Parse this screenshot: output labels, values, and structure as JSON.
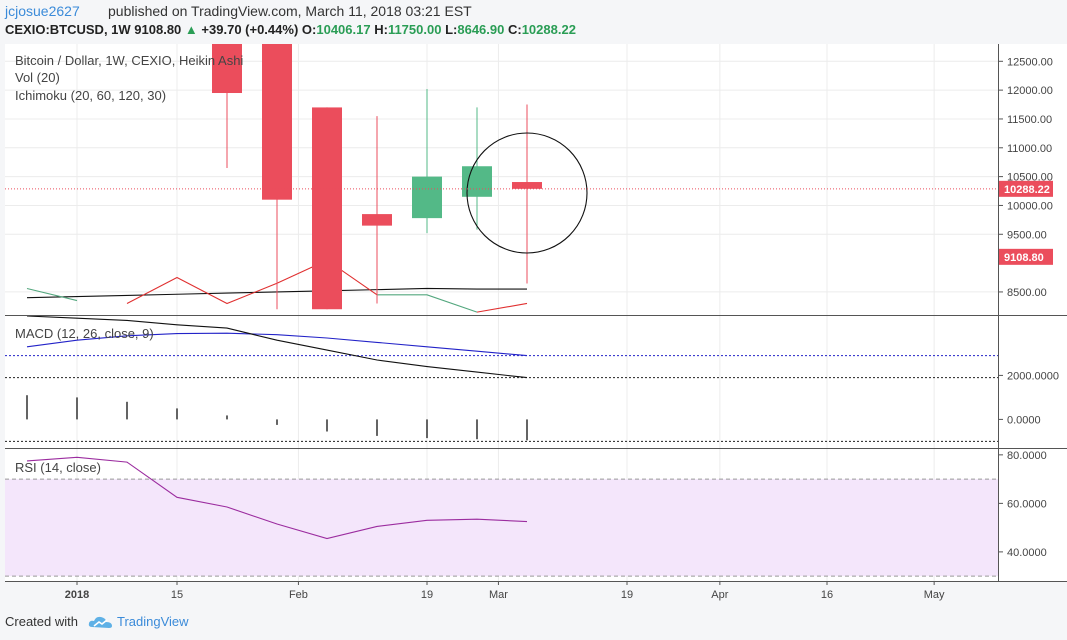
{
  "header": {
    "username": "jcjosue2627",
    "published": "published on TradingView.com, March 11, 2018 03:21 EST",
    "symbol": "CEXIO:BTCUSD, 1W",
    "price": "9108.80",
    "change": "+39.70 (+0.44%)",
    "o_label": "O:",
    "o_value": "10406.17",
    "h_label": "H:",
    "h_value": "11750.00",
    "l_label": "L:",
    "l_value": "8646.90",
    "c_label": "C:",
    "c_value": "10288.22"
  },
  "legend": {
    "main": "Bitcoin / Dollar, 1W, CEXIO, Heikin Ashi",
    "vol": "Vol (20)",
    "ichimoku": "Ichimoku (20, 60, 120, 30)",
    "macd": "MACD (12, 26, close, 9)",
    "rsi": "RSI (14, close)"
  },
  "footer": {
    "created_with": "Created with",
    "brand": "TradingView"
  },
  "colors": {
    "up": "#53b987",
    "down": "#eb4d5c",
    "signal": "#2323c8",
    "macd": "#111111",
    "rsi": "#9b2c9f",
    "rsi_band": "#f4e6fb",
    "price_tag": "#eb4d5c"
  },
  "chart_data": [
    {
      "type": "candlestick",
      "style": "Heikin Ashi",
      "x": [
        "2017-12-25",
        "2018-01-01",
        "2018-01-08",
        "2018-01-15",
        "2018-01-22",
        "2018-01-29",
        "2018-02-05",
        "2018-02-12",
        "2018-02-19",
        "2018-02-26",
        "2018-03-05"
      ],
      "open": [
        null,
        null,
        null,
        null,
        14500,
        13500,
        11700,
        9850,
        9780,
        10150,
        10406.17
      ],
      "close": [
        null,
        null,
        null,
        null,
        11950,
        10100,
        8200,
        9650,
        10500,
        10680,
        10288.22
      ],
      "high": [
        null,
        null,
        null,
        null,
        14500,
        13500,
        11700,
        11550,
        12020,
        11700,
        11750
      ],
      "low": [
        null,
        null,
        null,
        null,
        10650,
        8200,
        8200,
        8300,
        9520,
        9580,
        8646.9
      ],
      "ylim": [
        8100,
        12800
      ],
      "yticks": [
        "12500.00",
        "12000.00",
        "11500.00",
        "11000.00",
        "10500.00",
        "10000.00",
        "9500.00",
        "8500.00"
      ],
      "price_labels": [
        "10288.22",
        "9108.80"
      ],
      "ichimoku": {
        "red": [
          null,
          null,
          8300,
          8750,
          8300,
          8650,
          9050,
          8450,
          null,
          8150,
          8300
        ],
        "green": [
          8560,
          8350,
          null,
          null,
          null,
          null,
          null,
          8450,
          8450,
          8150,
          null
        ],
        "black": [
          8400,
          8420,
          8440,
          8460,
          8480,
          8500,
          8520,
          8540,
          8560,
          8550,
          8550
        ]
      },
      "annotation": "circle"
    },
    {
      "type": "line",
      "title": "MACD (12, 26, close, 9)",
      "x": [
        "2017-12-25",
        "2018-01-01",
        "2018-01-08",
        "2018-01-15",
        "2018-01-22",
        "2018-01-29",
        "2018-02-05",
        "2018-02-12",
        "2018-02-19",
        "2018-02-26",
        "2018-03-05"
      ],
      "series": [
        {
          "values": [
            3300,
            3600,
            3800,
            3900,
            3920,
            3850,
            3700,
            3500,
            3300,
            3100,
            2900
          ]
        },
        {
          "values": [
            4700,
            4600,
            4500,
            4300,
            4150,
            3600,
            3150,
            2700,
            2400,
            2150,
            1900
          ]
        }
      ],
      "histogram": [
        1100,
        1000,
        800,
        500,
        180,
        -250,
        -550,
        -750,
        -850,
        -900,
        -950
      ],
      "ylim": [
        -1300,
        4700
      ],
      "yticks": [
        "2000.0000",
        "0.0000"
      ],
      "hlines": [
        2900,
        1900,
        -1000
      ]
    },
    {
      "type": "line",
      "title": "RSI (14, close)",
      "x": [
        "2017-12-25",
        "2018-01-01",
        "2018-01-08",
        "2018-01-15",
        "2018-01-22",
        "2018-01-29",
        "2018-02-05",
        "2018-02-12",
        "2018-02-19",
        "2018-02-26",
        "2018-03-05"
      ],
      "values": [
        77.5,
        79.0,
        77.0,
        62.5,
        58.5,
        51.5,
        45.5,
        50.5,
        53.0,
        53.5,
        52.5
      ],
      "band": [
        30,
        70
      ],
      "ylim": [
        28,
        82
      ],
      "yticks": [
        "80.0000",
        "60.0000",
        "40.0000"
      ]
    },
    {
      "type": "time_axis",
      "labels": [
        {
          "text": "2018",
          "date": "2018-01-01"
        },
        {
          "text": "15",
          "date": "2018-01-15"
        },
        {
          "text": "Feb",
          "date": "2018-02-01"
        },
        {
          "text": "19",
          "date": "2018-02-19"
        },
        {
          "text": "Mar",
          "date": "2018-03-01"
        },
        {
          "text": "19",
          "date": "2018-03-19"
        },
        {
          "text": "Apr",
          "date": "2018-04-01"
        },
        {
          "text": "16",
          "date": "2018-04-16"
        },
        {
          "text": "May",
          "date": "2018-05-01"
        }
      ]
    }
  ]
}
